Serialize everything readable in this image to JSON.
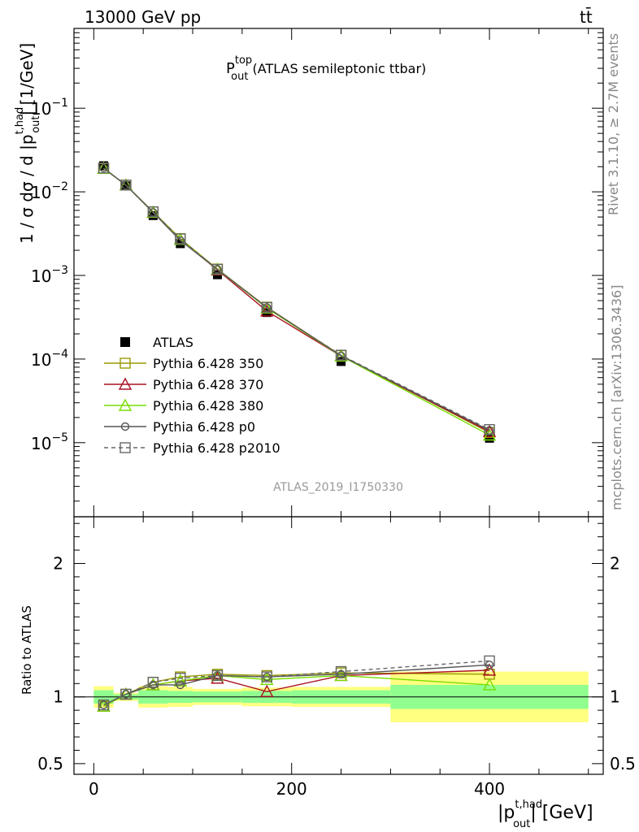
{
  "header": {
    "energy": "13000 GeV pp",
    "process": "tt̄"
  },
  "title": {
    "main": "P",
    "sup": "top",
    "sub": "out",
    "rest": " (ATLAS semileptonic ttbar)"
  },
  "ylabel": {
    "prefix": "1 / σ dσ / d |p",
    "sup": "t,had",
    "sub": "out",
    "suffix": "| [1/GeV]"
  },
  "xlabel": {
    "prefix": "|p",
    "sup": "t,had",
    "sub": "out",
    "suffix": "| [GeV]"
  },
  "ratio_label": "Ratio to ATLAS",
  "side_labels": {
    "rivet": "Rivet 3.1.10, ≥ 2.7M events",
    "mcplots": "mcplots.cern.ch [arXiv:1306.3436]"
  },
  "analysis_tag": "ATLAS_2019_I1750330",
  "main_ticks": [
    {
      "base": "10",
      "exp": "−1",
      "value": 0.1
    },
    {
      "base": "10",
      "exp": "−2",
      "value": 0.01
    },
    {
      "base": "10",
      "exp": "−3",
      "value": 0.001
    },
    {
      "base": "10",
      "exp": "−4",
      "value": 0.0001
    },
    {
      "base": "10",
      "exp": "−5",
      "value": 1e-05
    }
  ],
  "ratio_ticks": [
    "2",
    "1",
    "0.5"
  ],
  "x_ticks": [
    "0",
    "200",
    "400"
  ],
  "chart_data": {
    "type": "line",
    "xlim": [
      -20,
      515
    ],
    "ylim": [
      1.3e-06,
      0.9
    ],
    "ratio_ylim": [
      0.42,
      2.35
    ],
    "bins": [
      [
        0,
        20
      ],
      [
        20,
        45
      ],
      [
        45,
        75
      ],
      [
        75,
        100
      ],
      [
        100,
        150
      ],
      [
        150,
        200
      ],
      [
        200,
        300
      ],
      [
        300,
        500
      ]
    ],
    "x": [
      10,
      32.5,
      60,
      87.5,
      125,
      175,
      250,
      400
    ],
    "data": {
      "name": "ATLAS",
      "values": [
        0.0205,
        0.0118,
        0.0052,
        0.0024,
        0.00102,
        0.00036,
        9.35e-05,
        1.13e-05
      ]
    },
    "band_inner": [
      0.05,
      0.02,
      0.05,
      0.045,
      0.04,
      0.045,
      0.05,
      0.09
    ],
    "band_outer": [
      0.08,
      0.03,
      0.08,
      0.075,
      0.06,
      0.07,
      0.075,
      0.19
    ],
    "series": [
      {
        "name": "Pythia 6.428 350",
        "color": "#999900",
        "marker": "square-open",
        "dash": "",
        "ratio": [
          0.93,
          1.02,
          1.11,
          1.15,
          1.17,
          1.16,
          1.18,
          1.17
        ]
      },
      {
        "name": "Pythia 6.428 370",
        "color": "#aa1122",
        "marker": "triangle-open",
        "dash": "",
        "ratio": [
          0.93,
          1.02,
          1.09,
          1.12,
          1.14,
          1.04,
          1.16,
          1.2
        ]
      },
      {
        "name": "Pythia 6.428 380",
        "color": "#77dd00",
        "marker": "triangle-open",
        "dash": "",
        "ratio": [
          0.93,
          1.02,
          1.09,
          1.12,
          1.16,
          1.13,
          1.16,
          1.09
        ]
      },
      {
        "name": "Pythia 6.428 p0",
        "color": "#555555",
        "marker": "circle-open",
        "dash": "",
        "ratio": [
          0.94,
          1.02,
          1.09,
          1.09,
          1.16,
          1.15,
          1.17,
          1.24
        ]
      },
      {
        "name": "Pythia 6.428 p2010",
        "color": "#666666",
        "marker": "square-open",
        "dash": "5,4",
        "ratio": [
          0.94,
          1.02,
          1.11,
          1.14,
          1.16,
          1.15,
          1.19,
          1.27
        ]
      }
    ]
  }
}
